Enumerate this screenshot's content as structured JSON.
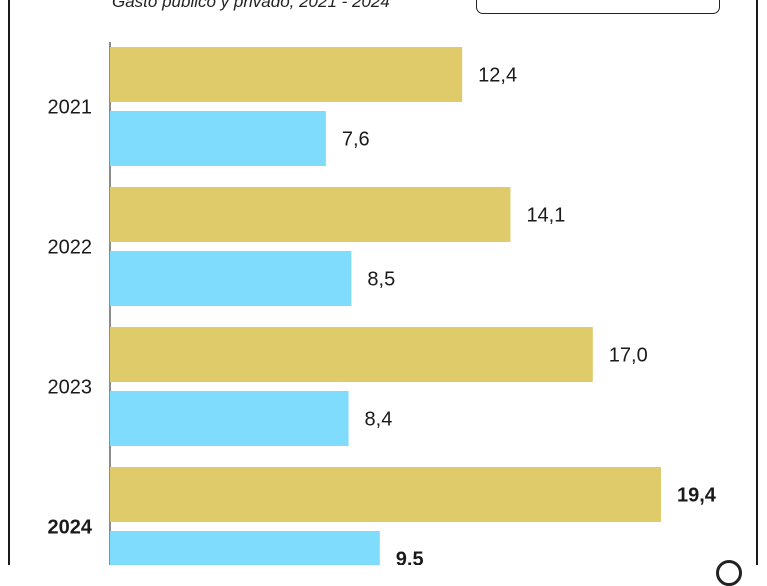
{
  "header": {
    "subtitle": "Gasto público y privado, 2021 - 2024"
  },
  "colors": {
    "series_a": "#dfcb69",
    "series_b": "#7fdcfd",
    "axis": "#1a1a1a",
    "frame": "#1a1a1a"
  },
  "chart_data": {
    "type": "bar",
    "orientation": "horizontal",
    "categories": [
      "2021",
      "2022",
      "2023",
      "2024"
    ],
    "series": [
      {
        "values": [
          12.4,
          14.1,
          17.0,
          19.4
        ],
        "labels": [
          "12,4",
          "14,1",
          "17,0",
          "19,4"
        ],
        "color": "#dfcb69"
      },
      {
        "values": [
          7.6,
          8.5,
          8.4,
          9.5
        ],
        "labels": [
          "7,6",
          "8,5",
          "8,4",
          "9,5"
        ],
        "color": "#7fdcfd"
      }
    ],
    "highlight_category": "2024",
    "xlim": [
      0,
      22
    ],
    "grid": false,
    "legend": "top-right"
  }
}
